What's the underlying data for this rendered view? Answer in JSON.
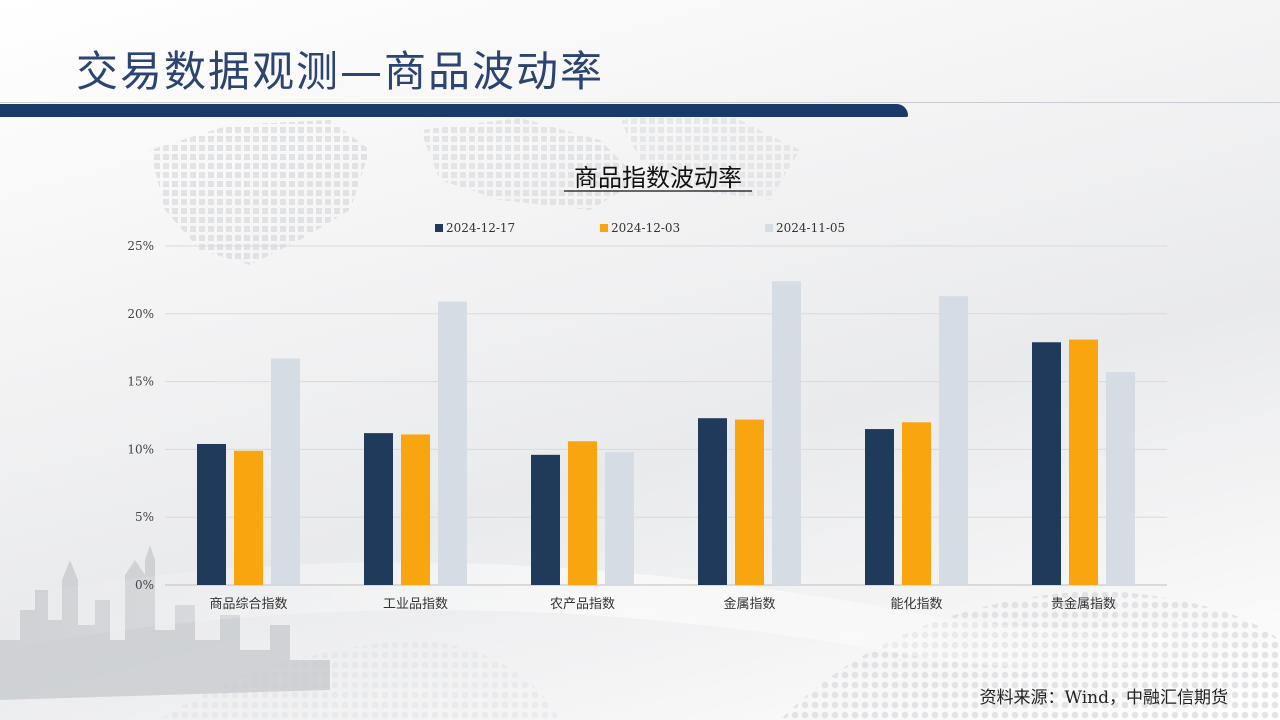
{
  "page": {
    "title": "交易数据观测—商品波动率",
    "source": "资料来源：Wind，中融汇信期货"
  },
  "colors": {
    "title": "#2c4470",
    "bar_accent": "#1b3a6a"
  },
  "chart_data": {
    "type": "bar",
    "title": "商品指数波动率",
    "categories": [
      "商品综合指数",
      "工业品指数",
      "农产品指数",
      "金属指数",
      "能化指数",
      "贵金属指数"
    ],
    "series": [
      {
        "name": "2024-12-17",
        "color": "#1f3a5a",
        "values": [
          10.4,
          11.2,
          9.6,
          12.3,
          11.5,
          17.9
        ]
      },
      {
        "name": "2024-12-03",
        "color": "#f9a50f",
        "values": [
          9.9,
          11.1,
          10.6,
          12.2,
          12.0,
          18.1
        ]
      },
      {
        "name": "2024-11-05",
        "color": "#d6dce4",
        "values": [
          16.7,
          20.9,
          9.8,
          22.4,
          21.3,
          15.7
        ]
      }
    ],
    "yticks": [
      "0%",
      "5%",
      "10%",
      "15%",
      "20%",
      "25%"
    ],
    "ylim": [
      0,
      25
    ],
    "legend_position": "top",
    "grid": true
  }
}
